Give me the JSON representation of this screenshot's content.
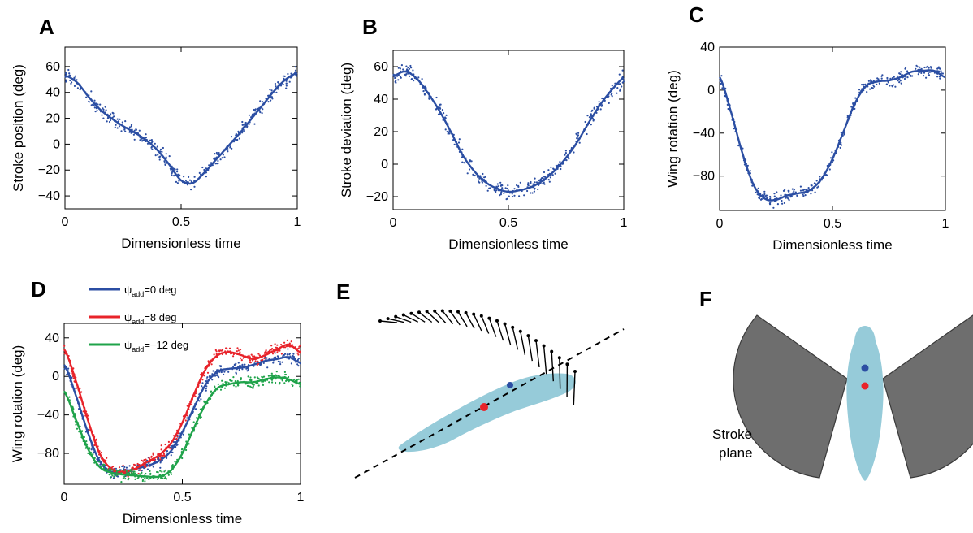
{
  "colors": {
    "blue": "#2b4ea3",
    "red": "#e8232a",
    "green": "#1fa34a",
    "body": "#96cbd9",
    "wing": "#6e6e6e",
    "wing_edge": "#3a3a3a"
  },
  "panels": {
    "A": "A",
    "B": "B",
    "C": "C",
    "D": "D",
    "E": "E",
    "F": "F"
  },
  "panel_f": {
    "label_line1": "Stroke",
    "label_line2": "plane"
  },
  "chart_data": [
    {
      "panel": "A",
      "type": "line",
      "xlabel": "Dimensionless time",
      "ylabel": "Stroke position (deg)",
      "xlim": [
        0,
        1
      ],
      "ylim": [
        -50,
        75
      ],
      "xticks": [
        {
          "v": 0,
          "t": "0"
        },
        {
          "v": 0.5,
          "t": "0.5"
        },
        {
          "v": 1,
          "t": "1"
        }
      ],
      "yticks": [
        {
          "v": 60,
          "t": "60"
        },
        {
          "v": 40,
          "t": "40"
        },
        {
          "v": 20,
          "t": "20"
        },
        {
          "v": 0,
          "t": "0"
        },
        {
          "v": -20,
          "t": "−20"
        },
        {
          "v": -40,
          "t": "−40"
        }
      ],
      "series": [
        {
          "color": "blue",
          "scatter": true,
          "spread": 8,
          "x": [
            0,
            0.05,
            0.1,
            0.15,
            0.2,
            0.25,
            0.3,
            0.35,
            0.4,
            0.45,
            0.5,
            0.55,
            0.6,
            0.65,
            0.7,
            0.75,
            0.8,
            0.85,
            0.9,
            0.95,
            1.0
          ],
          "y": [
            53,
            48,
            37,
            27,
            20,
            14,
            9,
            3,
            -5,
            -16,
            -28,
            -30,
            -22,
            -12,
            -2,
            8,
            19,
            30,
            41,
            50,
            55
          ]
        }
      ]
    },
    {
      "panel": "B",
      "type": "line",
      "xlabel": "Dimensionless time",
      "ylabel": "Stroke deviation (deg)",
      "xlim": [
        0,
        1
      ],
      "ylim": [
        -28,
        70
      ],
      "xticks": [
        {
          "v": 0,
          "t": "0"
        },
        {
          "v": 0.5,
          "t": "0.5"
        },
        {
          "v": 1,
          "t": "1"
        }
      ],
      "yticks": [
        {
          "v": 60,
          "t": "60"
        },
        {
          "v": 40,
          "t": "40"
        },
        {
          "v": 20,
          "t": "20"
        },
        {
          "v": 0,
          "t": "0"
        },
        {
          "v": -20,
          "t": "−20"
        }
      ],
      "series": [
        {
          "color": "blue",
          "scatter": true,
          "spread": 7,
          "x": [
            0,
            0.05,
            0.1,
            0.15,
            0.2,
            0.25,
            0.3,
            0.35,
            0.4,
            0.45,
            0.5,
            0.55,
            0.6,
            0.65,
            0.7,
            0.75,
            0.8,
            0.85,
            0.9,
            0.95,
            1.0
          ],
          "y": [
            54,
            57,
            53,
            44,
            33,
            20,
            6,
            -4,
            -11,
            -15,
            -17,
            -16,
            -14,
            -10,
            -4,
            4,
            14,
            26,
            37,
            46,
            53
          ]
        }
      ]
    },
    {
      "panel": "C",
      "type": "line",
      "xlabel": "Dimensionless time",
      "ylabel": "Wing rotation (deg)",
      "xlim": [
        0,
        1
      ],
      "ylim": [
        -112,
        40
      ],
      "xticks": [
        {
          "v": 0,
          "t": "0"
        },
        {
          "v": 0.5,
          "t": "0.5"
        },
        {
          "v": 1,
          "t": "1"
        }
      ],
      "yticks": [
        {
          "v": 40,
          "t": "40"
        },
        {
          "v": 0,
          "t": "0"
        },
        {
          "v": -40,
          "t": "−40"
        },
        {
          "v": -80,
          "t": "−80"
        }
      ],
      "series": [
        {
          "color": "blue",
          "scatter": true,
          "spread": 9,
          "x": [
            0,
            0.05,
            0.1,
            0.15,
            0.2,
            0.25,
            0.3,
            0.35,
            0.4,
            0.45,
            0.5,
            0.55,
            0.6,
            0.65,
            0.7,
            0.75,
            0.8,
            0.85,
            0.9,
            0.95,
            1.0
          ],
          "y": [
            12,
            -20,
            -58,
            -88,
            -101,
            -102,
            -98,
            -96,
            -93,
            -83,
            -64,
            -38,
            -12,
            4,
            8,
            9,
            12,
            17,
            18,
            18,
            12
          ]
        }
      ]
    },
    {
      "panel": "D",
      "type": "line",
      "xlabel": "Dimensionless time",
      "ylabel": "Wing rotation (deg)",
      "xlim": [
        0,
        1
      ],
      "ylim": [
        -112,
        55
      ],
      "xticks": [
        {
          "v": 0,
          "t": "0"
        },
        {
          "v": 0.5,
          "t": "0.5"
        },
        {
          "v": 1,
          "t": "1"
        }
      ],
      "yticks": [
        {
          "v": 40,
          "t": "40"
        },
        {
          "v": 0,
          "t": "0"
        },
        {
          "v": -40,
          "t": "−40"
        },
        {
          "v": -80,
          "t": "−80"
        }
      ],
      "legend": [
        {
          "color": "blue",
          "pre": "ψ",
          "sub": "add",
          "post": "=0 deg"
        },
        {
          "color": "red",
          "pre": "ψ",
          "sub": "add",
          "post": "=8 deg"
        },
        {
          "color": "green",
          "pre": "ψ",
          "sub": "add",
          "post": "=−12 deg"
        }
      ],
      "series": [
        {
          "color": "blue",
          "scatter": true,
          "spread": 9,
          "x": [
            0,
            0.05,
            0.1,
            0.15,
            0.2,
            0.25,
            0.3,
            0.35,
            0.4,
            0.45,
            0.5,
            0.55,
            0.6,
            0.65,
            0.7,
            0.75,
            0.8,
            0.85,
            0.9,
            0.95,
            1.0
          ],
          "y": [
            12,
            -20,
            -58,
            -88,
            -99,
            -99,
            -96,
            -93,
            -88,
            -78,
            -58,
            -32,
            -8,
            5,
            8,
            9,
            12,
            16,
            18,
            20,
            14
          ]
        },
        {
          "color": "red",
          "scatter": true,
          "spread": 9,
          "x": [
            0,
            0.05,
            0.1,
            0.15,
            0.2,
            0.25,
            0.3,
            0.35,
            0.4,
            0.45,
            0.5,
            0.55,
            0.6,
            0.65,
            0.7,
            0.75,
            0.8,
            0.85,
            0.9,
            0.95,
            1.0
          ],
          "y": [
            28,
            -5,
            -45,
            -80,
            -96,
            -99,
            -96,
            -89,
            -82,
            -70,
            -48,
            -18,
            8,
            22,
            25,
            22,
            18,
            22,
            28,
            33,
            25
          ]
        },
        {
          "color": "green",
          "scatter": true,
          "spread": 9,
          "x": [
            0,
            0.05,
            0.1,
            0.15,
            0.2,
            0.25,
            0.3,
            0.35,
            0.4,
            0.45,
            0.5,
            0.55,
            0.6,
            0.65,
            0.7,
            0.75,
            0.8,
            0.85,
            0.9,
            0.95,
            1.0
          ],
          "y": [
            -16,
            -45,
            -75,
            -94,
            -100,
            -102,
            -103,
            -104,
            -104,
            -98,
            -80,
            -53,
            -28,
            -12,
            -8,
            -6,
            -6,
            -3,
            -1,
            -3,
            -8
          ]
        }
      ]
    }
  ]
}
